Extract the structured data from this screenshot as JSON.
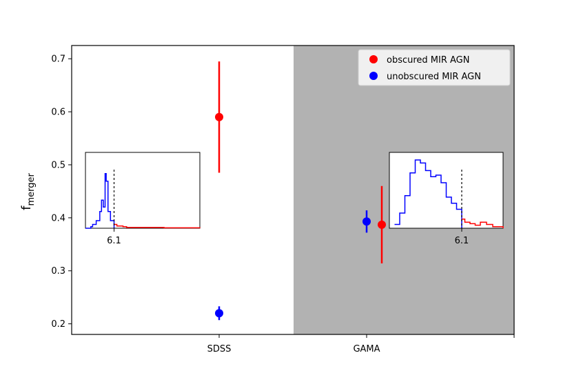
{
  "chart_data": {
    "type": "scatter",
    "title": "",
    "xlabel": "",
    "ylabel": "f",
    "ylabel_subscript": "merger",
    "categories": [
      "SDSS",
      "GAMA"
    ],
    "ylim": [
      0.18,
      0.725
    ],
    "yticks": [
      0.2,
      0.3,
      0.4,
      0.5,
      0.6,
      0.7
    ],
    "shaded_region": {
      "category": "GAMA",
      "color": "#b2b2b2"
    },
    "legend": {
      "position": "top-right"
    },
    "series": [
      {
        "name": "obscured MIR AGN",
        "color": "#ff0000",
        "points": [
          {
            "category": "SDSS",
            "y": 0.59,
            "err_low": 0.105,
            "err_high": 0.105
          },
          {
            "category": "GAMA",
            "y": 0.387,
            "err_low": 0.073,
            "err_high": 0.073
          }
        ]
      },
      {
        "name": "unobscured MIR AGN",
        "color": "#0000ff",
        "points": [
          {
            "category": "SDSS",
            "y": 0.22,
            "err_low": 0.013,
            "err_high": 0.013
          },
          {
            "category": "GAMA",
            "y": 0.393,
            "err_low": 0.021,
            "err_high": 0.021
          }
        ]
      }
    ],
    "insets": [
      {
        "category": "SDSS",
        "tick_label": "6.1",
        "xlim": [
          5.3,
          8.5
        ],
        "cut": 6.1,
        "blue_hist": [
          [
            5.3,
            0
          ],
          [
            5.45,
            0.02
          ],
          [
            5.5,
            0.05
          ],
          [
            5.6,
            0.1
          ],
          [
            5.7,
            0.22
          ],
          [
            5.75,
            0.37
          ],
          [
            5.8,
            0.28
          ],
          [
            5.85,
            0.72
          ],
          [
            5.88,
            0.62
          ],
          [
            5.93,
            0.22
          ],
          [
            6.0,
            0.1
          ],
          [
            6.1,
            0
          ]
        ],
        "red_hist": [
          [
            6.1,
            0.05
          ],
          [
            6.18,
            0.03
          ],
          [
            6.35,
            0.02
          ],
          [
            6.45,
            0.01
          ],
          [
            6.8,
            0.01
          ],
          [
            7.5,
            0.005
          ],
          [
            8.5,
            0
          ]
        ]
      },
      {
        "category": "GAMA",
        "tick_label": "6.1",
        "xlim": [
          5.4,
          6.5
        ],
        "cut": 6.1,
        "blue_hist": [
          [
            5.45,
            0.05
          ],
          [
            5.5,
            0.2
          ],
          [
            5.55,
            0.43
          ],
          [
            5.6,
            0.73
          ],
          [
            5.65,
            0.9
          ],
          [
            5.7,
            0.86
          ],
          [
            5.75,
            0.76
          ],
          [
            5.8,
            0.68
          ],
          [
            5.85,
            0.7
          ],
          [
            5.9,
            0.6
          ],
          [
            5.95,
            0.41
          ],
          [
            6.0,
            0.33
          ],
          [
            6.05,
            0.25
          ],
          [
            6.1,
            0
          ]
        ],
        "red_hist": [
          [
            6.1,
            0.12
          ],
          [
            6.13,
            0.08
          ],
          [
            6.18,
            0.06
          ],
          [
            6.23,
            0.04
          ],
          [
            6.28,
            0.08
          ],
          [
            6.34,
            0.05
          ],
          [
            6.4,
            0.02
          ],
          [
            6.5,
            0
          ]
        ]
      }
    ]
  }
}
